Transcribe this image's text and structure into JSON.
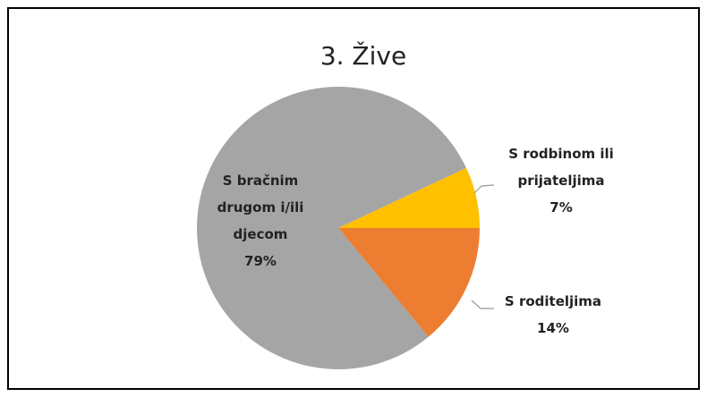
{
  "chart_data": {
    "type": "pie",
    "title": "3. Žive",
    "categories": [
      "S rodbinom ili prijateljima",
      "S roditeljima",
      "S bračnim drugom i/ili djecom"
    ],
    "values": [
      7,
      14,
      79
    ],
    "value_labels": [
      "7%",
      "14%",
      "79%"
    ],
    "colors": [
      "#ffc000",
      "#ed7d31",
      "#a5a5a5"
    ]
  }
}
